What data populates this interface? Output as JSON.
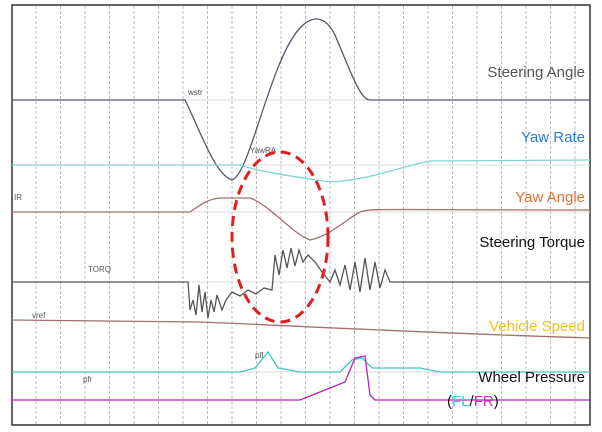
{
  "labels": {
    "steering_angle": "Steering Angle",
    "yaw_rate": "Yaw Rate",
    "yaw_angle": "Yaw Angle",
    "steering_torque": "Steering Torque",
    "vehicle_speed": "Vehicle Speed",
    "wheel_pressure": "Wheel Pressure",
    "open": "(",
    "fl": "FL",
    "slash": "/",
    "fr": "FR",
    "close": ")"
  },
  "trace_names": [
    "wstr",
    "YawRA",
    "IR",
    "TORQ",
    "vref",
    "pfl",
    "pfr"
  ]
}
